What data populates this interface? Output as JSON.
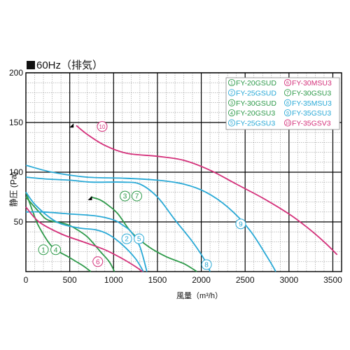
{
  "chart_data": {
    "type": "line",
    "title": "60Hz（排気）",
    "xlabel": "風量（m³/h）",
    "ylabel": "静圧 (Pa)",
    "xlim": [
      0,
      3600
    ],
    "ylim": [
      0,
      200
    ],
    "xticks": [
      0,
      500,
      1000,
      1500,
      2000,
      2500,
      3000,
      3500
    ],
    "yticks": [
      50,
      100,
      150,
      200
    ],
    "grid": true,
    "legend_placement": "top-right",
    "legend": [
      {
        "num": "1",
        "name": "FY-20GSUD",
        "color": "#2e9a4a"
      },
      {
        "num": "2",
        "name": "FY-25GSUD",
        "color": "#29a9d6"
      },
      {
        "num": "3",
        "name": "FY-30GSUD",
        "color": "#2e9a4a"
      },
      {
        "num": "4",
        "name": "FY-20GSU3",
        "color": "#2e9a4a"
      },
      {
        "num": "5",
        "name": "FY-25GSU3",
        "color": "#29a9d6"
      },
      {
        "num": "6",
        "name": "FY-30MSU3",
        "color": "#d4307a"
      },
      {
        "num": "7",
        "name": "FY-30GSU3",
        "color": "#2e9a4a"
      },
      {
        "num": "8",
        "name": "FY-35MSU3",
        "color": "#29a9d6"
      },
      {
        "num": "9",
        "name": "FY-35GSU3",
        "color": "#29a9d6"
      },
      {
        "num": "10",
        "name": "FY-35GSV3",
        "color": "#d4307a"
      }
    ],
    "series": [
      {
        "label": "1 4",
        "color": "#2e9a4a",
        "points": [
          [
            0,
            80
          ],
          [
            80,
            60
          ],
          [
            150,
            45
          ],
          [
            300,
            25
          ],
          [
            500,
            14
          ],
          [
            650,
            6
          ],
          [
            740,
            0
          ]
        ]
      },
      {
        "label": "1 4",
        "color": "#2e9a4a",
        "points": [
          [
            0,
            75
          ],
          [
            150,
            60
          ],
          [
            250,
            52
          ],
          [
            450,
            48
          ],
          [
            550,
            44
          ],
          [
            700,
            35
          ],
          [
            850,
            20
          ],
          [
            950,
            10
          ],
          [
            1010,
            0
          ]
        ]
      },
      {
        "label": "3 7",
        "color": "#2e9a4a",
        "points": [
          [
            740,
            75
          ],
          [
            850,
            72
          ],
          [
            950,
            66
          ],
          [
            1050,
            58
          ],
          [
            1200,
            40
          ],
          [
            1400,
            25
          ],
          [
            1600,
            15
          ],
          [
            1800,
            8
          ],
          [
            1950,
            0
          ]
        ]
      },
      {
        "label": "2 5",
        "color": "#29a9d6",
        "points": [
          [
            0,
            80
          ],
          [
            120,
            66
          ],
          [
            350,
            50
          ],
          [
            600,
            44
          ],
          [
            800,
            42
          ],
          [
            950,
            37
          ],
          [
            1100,
            27
          ],
          [
            1250,
            13
          ],
          [
            1340,
            0
          ]
        ]
      },
      {
        "label": "2 5",
        "color": "#29a9d6",
        "points": [
          [
            0,
            60
          ],
          [
            200,
            60
          ],
          [
            500,
            58
          ],
          [
            800,
            56
          ],
          [
            1000,
            52
          ],
          [
            1100,
            47
          ],
          [
            1200,
            40
          ],
          [
            1300,
            25
          ],
          [
            1380,
            0
          ]
        ]
      },
      {
        "label": "6",
        "color": "#d4307a",
        "points": [
          [
            0,
            65
          ],
          [
            150,
            50
          ],
          [
            400,
            38
          ],
          [
            650,
            30
          ],
          [
            900,
            22
          ],
          [
            1100,
            13
          ],
          [
            1250,
            5
          ],
          [
            1330,
            0
          ]
        ]
      },
      {
        "label": "8",
        "color": "#29a9d6",
        "points": [
          [
            0,
            95
          ],
          [
            250,
            93
          ],
          [
            500,
            92
          ],
          [
            750,
            90
          ],
          [
            1100,
            90
          ],
          [
            1300,
            88
          ],
          [
            1500,
            75
          ],
          [
            1700,
            52
          ],
          [
            1900,
            30
          ],
          [
            2050,
            10
          ],
          [
            2100,
            0
          ]
        ]
      },
      {
        "label": "9",
        "color": "#29a9d6",
        "points": [
          [
            0,
            107
          ],
          [
            300,
            100
          ],
          [
            700,
            95
          ],
          [
            1100,
            94
          ],
          [
            1500,
            92
          ],
          [
            1800,
            88
          ],
          [
            2050,
            80
          ],
          [
            2300,
            65
          ],
          [
            2550,
            42
          ],
          [
            2750,
            15
          ],
          [
            2850,
            0
          ]
        ]
      },
      {
        "label": "10",
        "color": "#d4307a",
        "points": [
          [
            575,
            147
          ],
          [
            700,
            138
          ],
          [
            900,
            127
          ],
          [
            1150,
            119
          ],
          [
            1500,
            116
          ],
          [
            1800,
            112
          ],
          [
            2100,
            102
          ],
          [
            2400,
            88
          ],
          [
            2700,
            74
          ],
          [
            3000,
            58
          ],
          [
            3200,
            45
          ],
          [
            3400,
            30
          ],
          [
            3550,
            17
          ]
        ]
      }
    ],
    "annotations": [
      {
        "text": "10",
        "x": 870,
        "y": 146,
        "color": "#d4307a"
      },
      {
        "text": "3",
        "x": 1130,
        "y": 76,
        "color": "#2e9a4a"
      },
      {
        "text": "7",
        "x": 1265,
        "y": 76,
        "color": "#2e9a4a"
      },
      {
        "text": "2",
        "x": 1150,
        "y": 33,
        "color": "#29a9d6"
      },
      {
        "text": "5",
        "x": 1290,
        "y": 33,
        "color": "#29a9d6"
      },
      {
        "text": "1",
        "x": 200,
        "y": 22,
        "color": "#2e9a4a"
      },
      {
        "text": "4",
        "x": 340,
        "y": 22,
        "color": "#2e9a4a"
      },
      {
        "text": "6",
        "x": 820,
        "y": 10,
        "color": "#d4307a"
      },
      {
        "text": "8",
        "x": 2060,
        "y": 7,
        "color": "#29a9d6"
      },
      {
        "text": "9",
        "x": 2450,
        "y": 48,
        "color": "#29a9d6"
      }
    ],
    "markers": [
      {
        "x": 520,
        "y": 147
      },
      {
        "x": 730,
        "y": 74
      }
    ]
  }
}
